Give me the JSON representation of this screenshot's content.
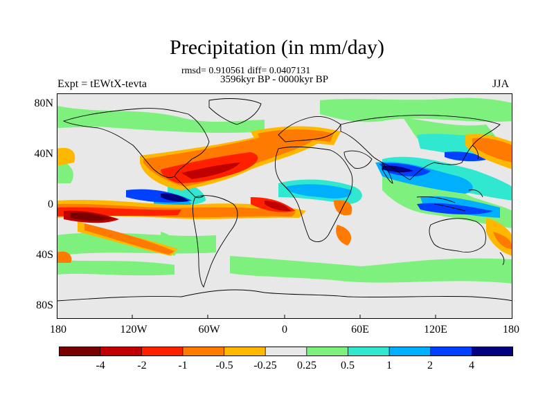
{
  "title": "Precipitation (in mm/day)",
  "stats": "rmsd= 0.910561 diff= 0.0407131",
  "period": "3596kyr BP - 0000kyr BP",
  "experiment": "Expt = tEWtX-tevta",
  "season": "JJA",
  "lat_labels": [
    "80N",
    "40N",
    "0",
    "40S",
    "80S"
  ],
  "lon_labels": [
    "180",
    "120W",
    "60W",
    "0",
    "60E",
    "120E",
    "180"
  ],
  "colorbar": {
    "labels": [
      "-4",
      "-2",
      "-1",
      "-0.5",
      "-0.25",
      "0.25",
      "0.5",
      "1",
      "2",
      "4"
    ],
    "colors": [
      "#7a0000",
      "#c00000",
      "#ff2000",
      "#ff7a00",
      "#ffb800",
      "#e8e8e8",
      "#7ef07e",
      "#30e8d0",
      "#00b0ff",
      "#0040ff",
      "#000080"
    ]
  }
}
